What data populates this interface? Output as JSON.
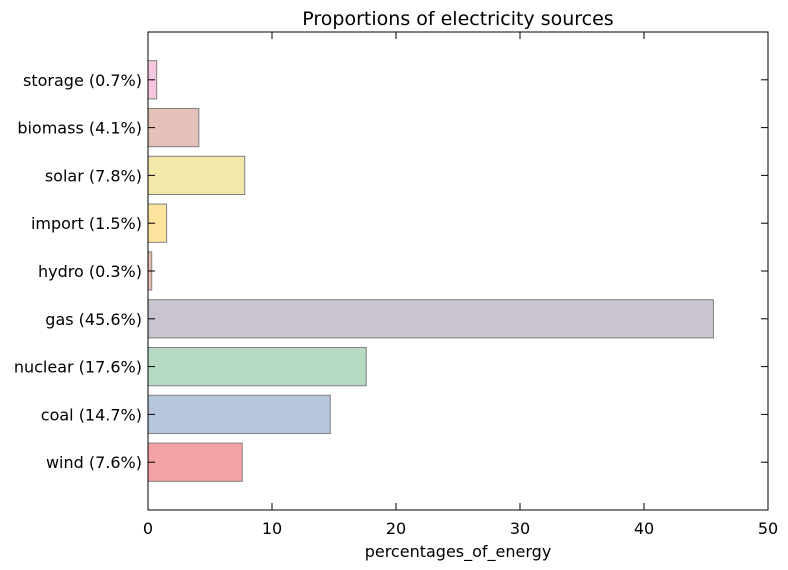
{
  "chart_data": {
    "type": "bar",
    "orientation": "horizontal",
    "title": "Proportions of electricity sources",
    "xlabel": "percentages_of_energy",
    "ylabel": "",
    "xlim": [
      0,
      50
    ],
    "xticks": [
      0,
      10,
      20,
      30,
      40,
      50
    ],
    "grid": false,
    "categories": [
      "wind (7.6%)",
      "coal (14.7%)",
      "nuclear (17.6%)",
      "gas (45.6%)",
      "hydro (0.3%)",
      "import (1.5%)",
      "solar (7.8%)",
      "biomass (4.1%)",
      "storage (0.7%)"
    ],
    "values": [
      7.6,
      14.7,
      17.6,
      45.6,
      0.3,
      1.5,
      7.8,
      4.1,
      0.7
    ],
    "colors": [
      "#f4a2a3",
      "#b7c6dd",
      "#b6dac3",
      "#cac4ce",
      "#e9bcb0",
      "#fde49e",
      "#f1e8aa",
      "#e4c0b8",
      "#f6c8e0"
    ],
    "edge_color": "#808080"
  }
}
